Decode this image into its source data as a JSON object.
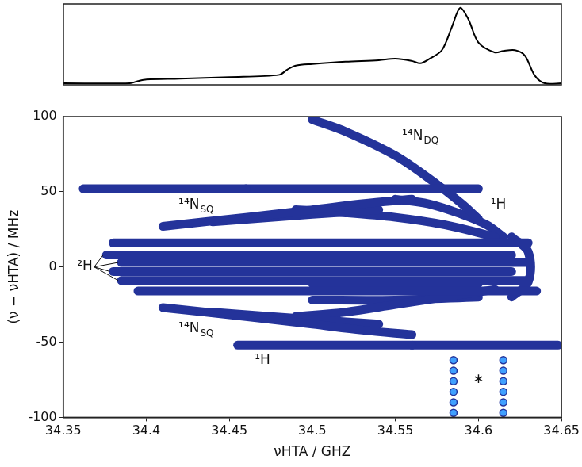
{
  "chart_data": [
    {
      "type": "line",
      "x": [
        34.35,
        34.39,
        34.395,
        34.4,
        34.42,
        34.45,
        34.48,
        34.485,
        34.49,
        34.5,
        34.52,
        34.54,
        34.55,
        34.56,
        34.565,
        34.57,
        34.578,
        34.584,
        34.589,
        34.594,
        34.6,
        34.61,
        34.615,
        34.622,
        34.628,
        34.634,
        34.64,
        34.65
      ],
      "values": [
        0.02,
        0.02,
        0.05,
        0.07,
        0.08,
        0.1,
        0.13,
        0.2,
        0.25,
        0.27,
        0.3,
        0.32,
        0.34,
        0.31,
        0.28,
        0.33,
        0.45,
        0.75,
        1.0,
        0.85,
        0.55,
        0.42,
        0.44,
        0.45,
        0.38,
        0.12,
        0.02,
        0.02
      ],
      "color": "#000000",
      "xlim": [
        34.35,
        34.65
      ],
      "ylim": [
        0,
        1.05
      ],
      "tick_labels": false,
      "grid": false
    },
    {
      "type": "scatter",
      "xlabel": "νHTA / GHZ",
      "ylabel": "(ν − νHTA) / MHz",
      "xlim": [
        34.35,
        34.65
      ],
      "ylim": [
        -100,
        100
      ],
      "xticks": [
        34.35,
        34.4,
        34.45,
        34.5,
        34.55,
        34.6,
        34.65
      ],
      "yticks": [
        -100,
        -50,
        0,
        50,
        100
      ],
      "grid": false,
      "series": [
        {
          "color": "#4a78e0",
          "line_style": "solid",
          "values": [
            [
              34.362,
              52
            ],
            [
              34.46,
              52
            ]
          ]
        },
        {
          "color": "#c00000",
          "line_style": "solid",
          "values": [
            [
              34.46,
              52
            ],
            [
              34.6,
              52
            ]
          ]
        },
        {
          "color": "#4a78e0",
          "line_style": "solid",
          "values": [
            [
              34.455,
              -52
            ],
            [
              34.56,
              -52
            ]
          ]
        },
        {
          "color": "#c00000",
          "line_style": "solid",
          "values": [
            [
              34.56,
              -52
            ],
            [
              34.648,
              -52
            ]
          ]
        },
        {
          "color": "#a00000",
          "line_style": "solid",
          "values": [
            [
              34.38,
              16
            ],
            [
              34.63,
              16
            ]
          ]
        },
        {
          "color": "#a00000",
          "line_style": "solid",
          "values": [
            [
              34.376,
              8
            ],
            [
              34.62,
              8
            ]
          ]
        },
        {
          "color": "#a00000",
          "line_style": "solid",
          "values": [
            [
              34.385,
              3
            ],
            [
              34.63,
              3
            ]
          ]
        },
        {
          "color": "#a00000",
          "line_style": "solid",
          "values": [
            [
              34.38,
              -3
            ],
            [
              34.62,
              -3
            ]
          ]
        },
        {
          "color": "#a00000",
          "line_style": "solid",
          "values": [
            [
              34.385,
              -9
            ],
            [
              34.63,
              -9
            ]
          ]
        },
        {
          "color": "#a00000",
          "line_style": "solid",
          "values": [
            [
              34.395,
              -16
            ],
            [
              34.635,
              -16
            ]
          ]
        },
        {
          "color": "#3a5fd0",
          "line_style": "solid",
          "values": [
            [
              34.5,
              98
            ],
            [
              34.52,
              90
            ],
            [
              34.55,
              74
            ],
            [
              34.575,
              55
            ],
            [
              34.59,
              42
            ],
            [
              34.6,
              32
            ]
          ]
        },
        {
          "color": "#40a0ff",
          "line_style": "solid",
          "values": [
            [
              34.41,
              27
            ],
            [
              34.46,
              33
            ],
            [
              34.5,
              38
            ],
            [
              34.53,
              42
            ],
            [
              34.56,
              45
            ]
          ]
        },
        {
          "color": "#60e080",
          "line_style": "solid",
          "values": [
            [
              34.44,
              30
            ],
            [
              34.5,
              35
            ],
            [
              34.54,
              38
            ]
          ]
        },
        {
          "color": "#ffd000",
          "line_style": "solid",
          "values": [
            [
              34.49,
              38
            ],
            [
              34.52,
              36
            ],
            [
              34.55,
              33
            ],
            [
              34.58,
              28
            ],
            [
              34.61,
              20
            ]
          ]
        },
        {
          "color": "#e02000",
          "line_style": "solid",
          "values": [
            [
              34.55,
              45
            ],
            [
              34.57,
              42
            ],
            [
              34.59,
              35
            ],
            [
              34.605,
              28
            ],
            [
              34.615,
              20
            ]
          ]
        },
        {
          "color": "#40a0ff",
          "line_style": "solid",
          "values": [
            [
              34.41,
              -27
            ],
            [
              34.46,
              -33
            ],
            [
              34.5,
              -38
            ],
            [
              34.53,
              -42
            ],
            [
              34.56,
              -45
            ]
          ]
        },
        {
          "color": "#60e080",
          "line_style": "solid",
          "values": [
            [
              34.44,
              -30
            ],
            [
              34.5,
              -35
            ],
            [
              34.54,
              -38
            ]
          ]
        },
        {
          "color": "#ffd000",
          "line_style": "solid",
          "values": [
            [
              34.49,
              -33
            ],
            [
              34.52,
              -30
            ],
            [
              34.55,
              -25
            ],
            [
              34.58,
              -20
            ],
            [
              34.61,
              -15
            ]
          ]
        },
        {
          "color": "#e02000",
          "line_style": "solid",
          "values": [
            [
              34.5,
              -22
            ],
            [
              34.55,
              -22
            ],
            [
              34.6,
              -20
            ]
          ]
        },
        {
          "color": "#d00000",
          "line_style": "solid",
          "values": [
            [
              34.5,
              -11
            ],
            [
              34.6,
              -11
            ]
          ]
        },
        {
          "color": "#ffb000",
          "line_style": "solid",
          "values": [
            [
              34.62,
              20
            ],
            [
              34.63,
              10
            ],
            [
              34.63,
              -10
            ],
            [
              34.62,
              -20
            ]
          ]
        },
        {
          "color": "#40a0ff",
          "line_style": "none",
          "marker": "circle",
          "values": [
            [
              34.585,
              -62
            ],
            [
              34.615,
              -62
            ],
            [
              34.585,
              -69
            ],
            [
              34.615,
              -69
            ],
            [
              34.585,
              -76
            ],
            [
              34.615,
              -76
            ],
            [
              34.585,
              -83
            ],
            [
              34.615,
              -83
            ],
            [
              34.585,
              -90
            ],
            [
              34.615,
              -90
            ],
            [
              34.585,
              -97
            ],
            [
              34.615,
              -97
            ]
          ]
        }
      ],
      "annotations": [
        {
          "text": "¹⁴N",
          "sub": "DQ",
          "x": 34.565,
          "y": 87
        },
        {
          "text": "¹H",
          "x": 34.612,
          "y": 41
        },
        {
          "text": "¹⁴N",
          "sub": "SQ",
          "x": 34.43,
          "y": 41
        },
        {
          "text": "²H",
          "x": 34.363,
          "y": 0
        },
        {
          "text": "¹⁴N",
          "sub": "SQ",
          "x": 34.43,
          "y": -41
        },
        {
          "text": "¹H",
          "x": 34.47,
          "y": -62
        },
        {
          "text": "∗",
          "x": 34.6,
          "y": -75
        }
      ]
    }
  ]
}
